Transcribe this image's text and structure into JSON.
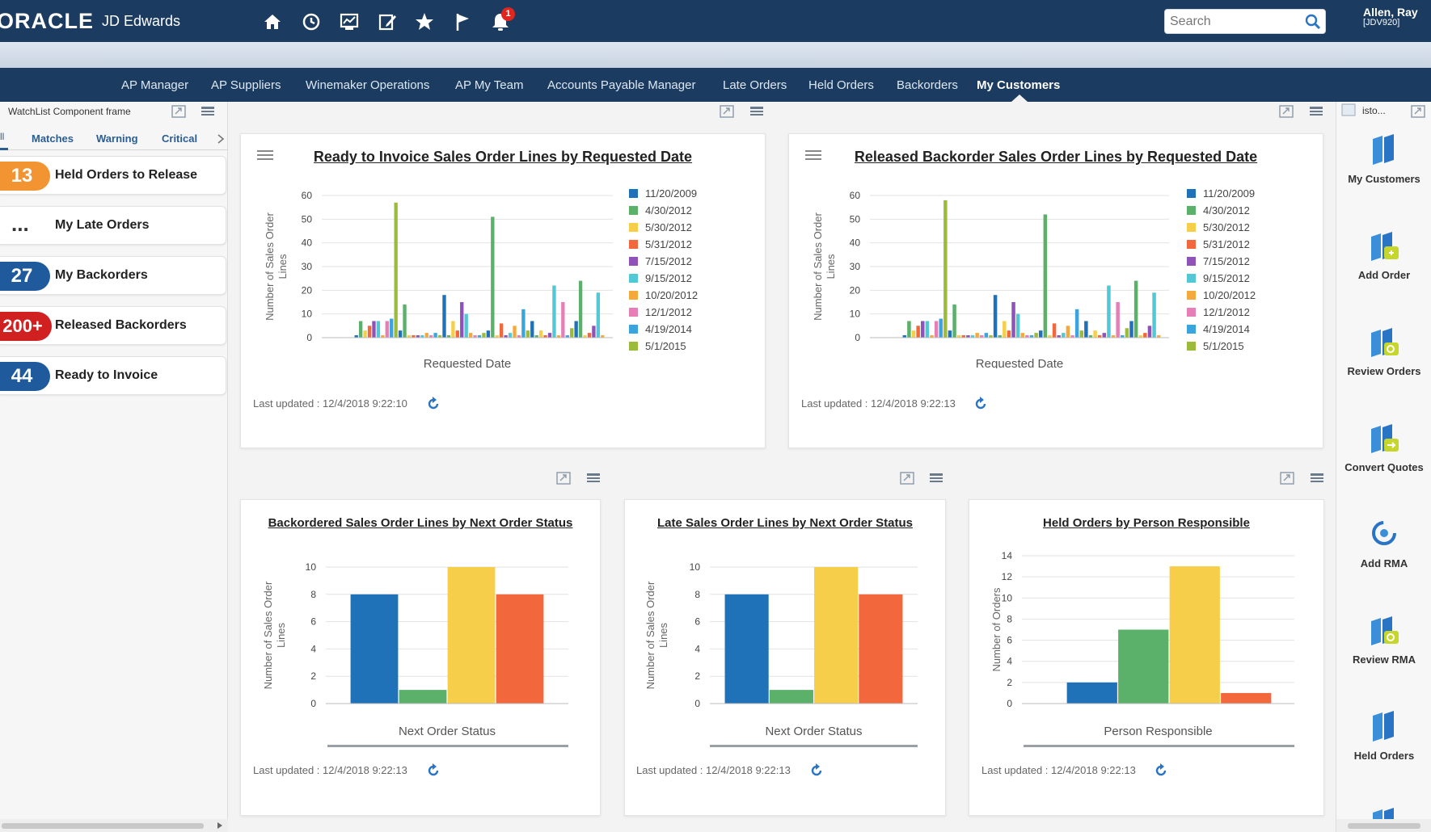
{
  "brand": {
    "logo": "ORACLE",
    "product": "JD Edwards"
  },
  "header": {
    "icons": [
      "home-icon",
      "recent-icon",
      "reports-icon",
      "edit-icon",
      "favorites-icon",
      "flag-icon",
      "bell-icon"
    ],
    "notification_count": "1",
    "search_placeholder": "Search",
    "user_name": "Allen, Ray",
    "user_env": "[JDV920]"
  },
  "tabs": [
    {
      "label": "AP Manager"
    },
    {
      "label": "AP Suppliers"
    },
    {
      "label": "Winemaker Operations"
    },
    {
      "label": "AP My Team"
    },
    {
      "label": "Accounts Payable Manager"
    },
    {
      "label": "Late Orders"
    },
    {
      "label": "Held Orders"
    },
    {
      "label": "Backorders"
    },
    {
      "label": "My Customers"
    }
  ],
  "watchlist": {
    "frame_title": "WatchList Component frame",
    "filters": {
      "all": "ll",
      "matches": "Matches",
      "warning": "Warning",
      "critical": "Critical"
    },
    "items": [
      {
        "count": "13",
        "label": "Held Orders to Release",
        "color": "#f39433"
      },
      {
        "count": "...",
        "label": "My Late Orders",
        "color": ""
      },
      {
        "count": "27",
        "label": "My Backorders",
        "color": "#1f5b9c"
      },
      {
        "count": "200+",
        "label": "Released Backorders",
        "color": "#d12020"
      },
      {
        "count": "44",
        "label": "Ready to Invoice",
        "color": "#1f5b9c"
      }
    ]
  },
  "cards": {
    "ready_to_invoice": {
      "title": "Ready to Invoice Sales Order Lines by Requested Date",
      "updated": "Last updated : 12/4/2018 9:22:10"
    },
    "released_backorder": {
      "title": "Released Backorder Sales Order Lines by Requested Date",
      "updated": "Last updated : 12/4/2018 9:22:13"
    },
    "backordered": {
      "title": "Backordered Sales Order Lines by Next Order Status",
      "updated": "Last updated : 12/4/2018 9:22:13"
    },
    "late": {
      "title": "Late Sales Order Lines by Next Order Status",
      "updated": "Last updated : 12/4/2018 9:22:13"
    },
    "held": {
      "title": "Held Orders by Person Responsible",
      "updated": "Last updated : 12/4/2018 9:22:13"
    }
  },
  "right_panel": {
    "header_text": "isto...",
    "links": [
      {
        "label": "My Customers",
        "icon": "doc-icon"
      },
      {
        "label": "Add Order",
        "icon": "doc-add-icon"
      },
      {
        "label": "Review Orders",
        "icon": "doc-review-icon"
      },
      {
        "label": "Convert Quotes",
        "icon": "doc-convert-icon"
      },
      {
        "label": "Add RMA",
        "icon": "rma-icon"
      },
      {
        "label": "Review RMA",
        "icon": "doc-review-icon"
      },
      {
        "label": "Held Orders",
        "icon": "doc-icon"
      }
    ]
  },
  "chart_data": [
    {
      "type": "bar",
      "title": "Ready to Invoice Sales Order Lines by Requested Date",
      "xlabel": "Requested Date",
      "ylabel": "Number of Sales Order Lines",
      "ylim": [
        0,
        60
      ],
      "yticks": [
        "60",
        "50",
        "40",
        "30",
        "20",
        "10",
        "0"
      ],
      "legend": [
        "11/20/2009",
        "4/30/2012",
        "5/30/2012",
        "5/31/2012",
        "7/15/2012",
        "9/15/2012",
        "10/20/2012",
        "12/1/2012",
        "4/19/2014",
        "5/1/2015"
      ],
      "series_colors": [
        "#1f72b8",
        "#5bb06a",
        "#f7ce4a",
        "#f2683c",
        "#8e52b8",
        "#52c7d6",
        "#f4a93c",
        "#e67fb5",
        "#3aa4dc",
        "#9dbb3a"
      ],
      "values": [
        1,
        7,
        3,
        5,
        7,
        7,
        1,
        7,
        8,
        57,
        3,
        14,
        1,
        1,
        1,
        1,
        2,
        1,
        2,
        1,
        18,
        1,
        7,
        3,
        15,
        10,
        2,
        1,
        1,
        2,
        3,
        51,
        1,
        6,
        1,
        2,
        5,
        1,
        12,
        3,
        7,
        1,
        3,
        1,
        2,
        22,
        1,
        15,
        1,
        4,
        7,
        24,
        1,
        2,
        5,
        19,
        1
      ]
    },
    {
      "type": "bar",
      "title": "Released Backorder Sales Order Lines by Requested Date",
      "xlabel": "Requested Date",
      "ylabel": "Number of Sales Order Lines",
      "ylim": [
        0,
        60
      ],
      "yticks": [
        "60",
        "50",
        "40",
        "30",
        "20",
        "10",
        "0"
      ],
      "legend": [
        "11/20/2009",
        "4/30/2012",
        "5/30/2012",
        "5/31/2012",
        "7/15/2012",
        "9/15/2012",
        "10/20/2012",
        "12/1/2012",
        "4/19/2014",
        "5/1/2015"
      ],
      "series_colors": [
        "#1f72b8",
        "#5bb06a",
        "#f7ce4a",
        "#f2683c",
        "#8e52b8",
        "#52c7d6",
        "#f4a93c",
        "#e67fb5",
        "#3aa4dc",
        "#9dbb3a"
      ],
      "values": [
        1,
        7,
        3,
        5,
        7,
        7,
        1,
        7,
        8,
        58,
        3,
        14,
        1,
        1,
        1,
        1,
        2,
        1,
        2,
        1,
        18,
        1,
        7,
        3,
        15,
        10,
        2,
        1,
        1,
        2,
        3,
        52,
        1,
        6,
        1,
        2,
        5,
        1,
        12,
        3,
        7,
        1,
        3,
        1,
        2,
        22,
        1,
        15,
        1,
        4,
        7,
        24,
        1,
        2,
        5,
        19,
        1
      ]
    },
    {
      "type": "bar",
      "title": "Backordered Sales Order Lines by Next Order Status",
      "xlabel": "Next Order Status",
      "ylabel": "Number of Sales Order Lines",
      "ylim": [
        0,
        10
      ],
      "yticks": [
        "10",
        "8",
        "6",
        "4",
        "2",
        "0"
      ],
      "values": [
        8,
        1,
        10,
        8
      ],
      "colors": [
        "#1f72b8",
        "#5bb06a",
        "#f7ce4a",
        "#f2683c"
      ]
    },
    {
      "type": "bar",
      "title": "Late Sales Order Lines by Next Order Status",
      "xlabel": "Next Order Status",
      "ylabel": "Number of Sales Order Lines",
      "ylim": [
        0,
        10
      ],
      "yticks": [
        "10",
        "8",
        "6",
        "4",
        "2",
        "0"
      ],
      "values": [
        8,
        1,
        10,
        8
      ],
      "colors": [
        "#1f72b8",
        "#5bb06a",
        "#f7ce4a",
        "#f2683c"
      ]
    },
    {
      "type": "bar",
      "title": "Held Orders by Person Responsible",
      "xlabel": "Person Responsible",
      "ylabel": "Number of Orders",
      "ylim": [
        0,
        14
      ],
      "yticks": [
        "14",
        "12",
        "10",
        "8",
        "6",
        "4",
        "2",
        "0"
      ],
      "values": [
        2,
        7,
        13,
        1
      ],
      "colors": [
        "#1f72b8",
        "#5bb06a",
        "#f7ce4a",
        "#f2683c"
      ]
    }
  ]
}
